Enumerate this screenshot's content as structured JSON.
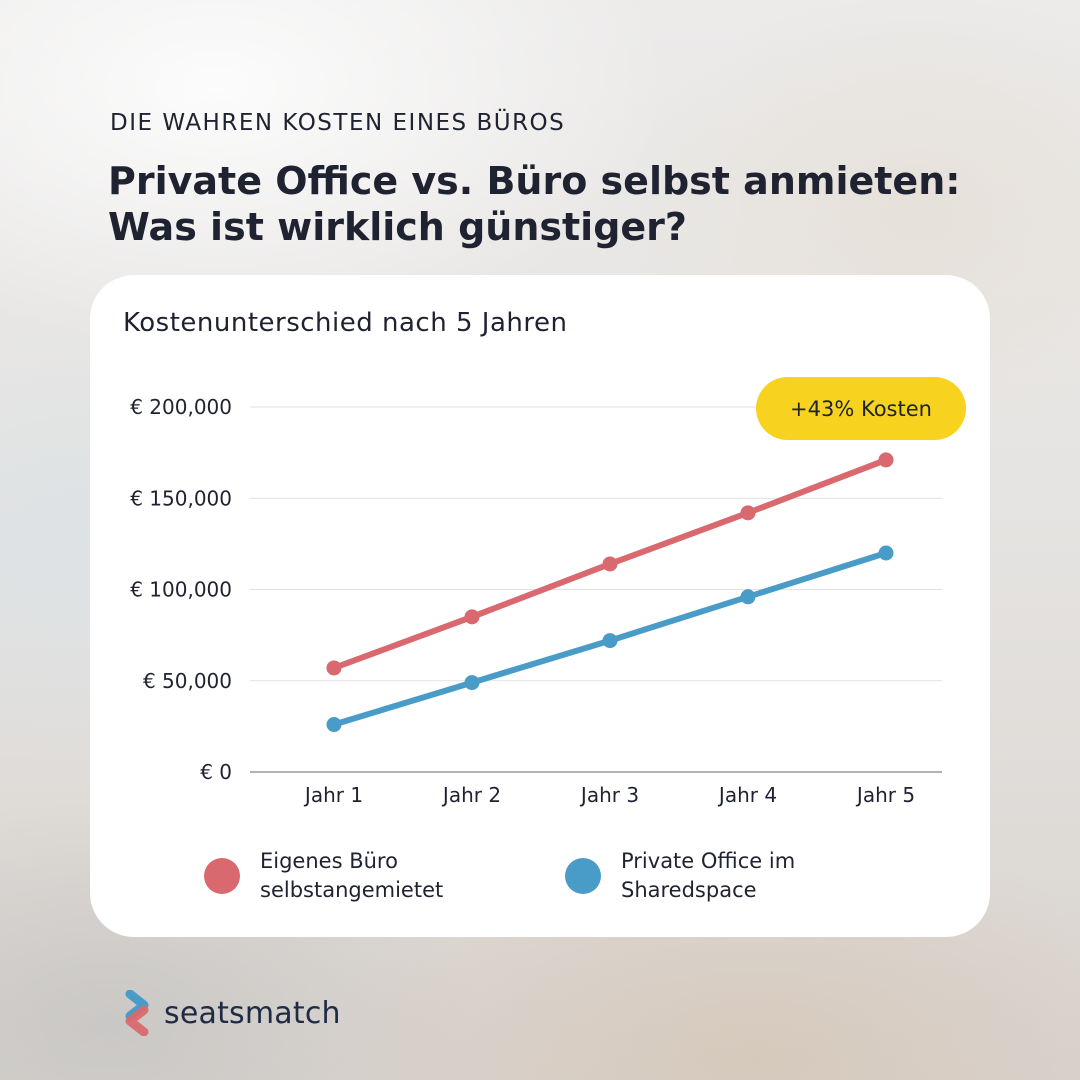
{
  "eyebrow": "DIE WAHREN KOSTEN EINES BÜROS",
  "headline": "Private Office vs. Büro selbst anmieten: Was ist wirklich günstiger?",
  "brand": {
    "name": "seatsmatch",
    "logo_icon": "seatsmatch-chevron-logo"
  },
  "badge": {
    "label": "+43% Kosten",
    "color": "#f7d21e"
  },
  "chart_data": {
    "type": "line",
    "title": "Kostenunterschied nach 5 Jahren",
    "categories": [
      "Jahr 1",
      "Jahr 2",
      "Jahr 3",
      "Jahr 4",
      "Jahr 5"
    ],
    "y_ticks": [
      0,
      50000,
      100000,
      150000,
      200000
    ],
    "y_tick_labels": [
      "€ 0",
      "€ 50,000",
      "€ 100,000",
      "€ 150,000",
      "€ 200,000"
    ],
    "ylim": [
      0,
      200000
    ],
    "grid": true,
    "legend_position": "bottom",
    "series": [
      {
        "name": "Eigenes Büro selbstangemietet",
        "color": "#d9696f",
        "values": [
          57000,
          85000,
          114000,
          142000,
          171000
        ]
      },
      {
        "name": "Private Office im Sharedspace",
        "color": "#4a9cc8",
        "values": [
          26000,
          49000,
          72000,
          96000,
          120000
        ]
      }
    ]
  }
}
